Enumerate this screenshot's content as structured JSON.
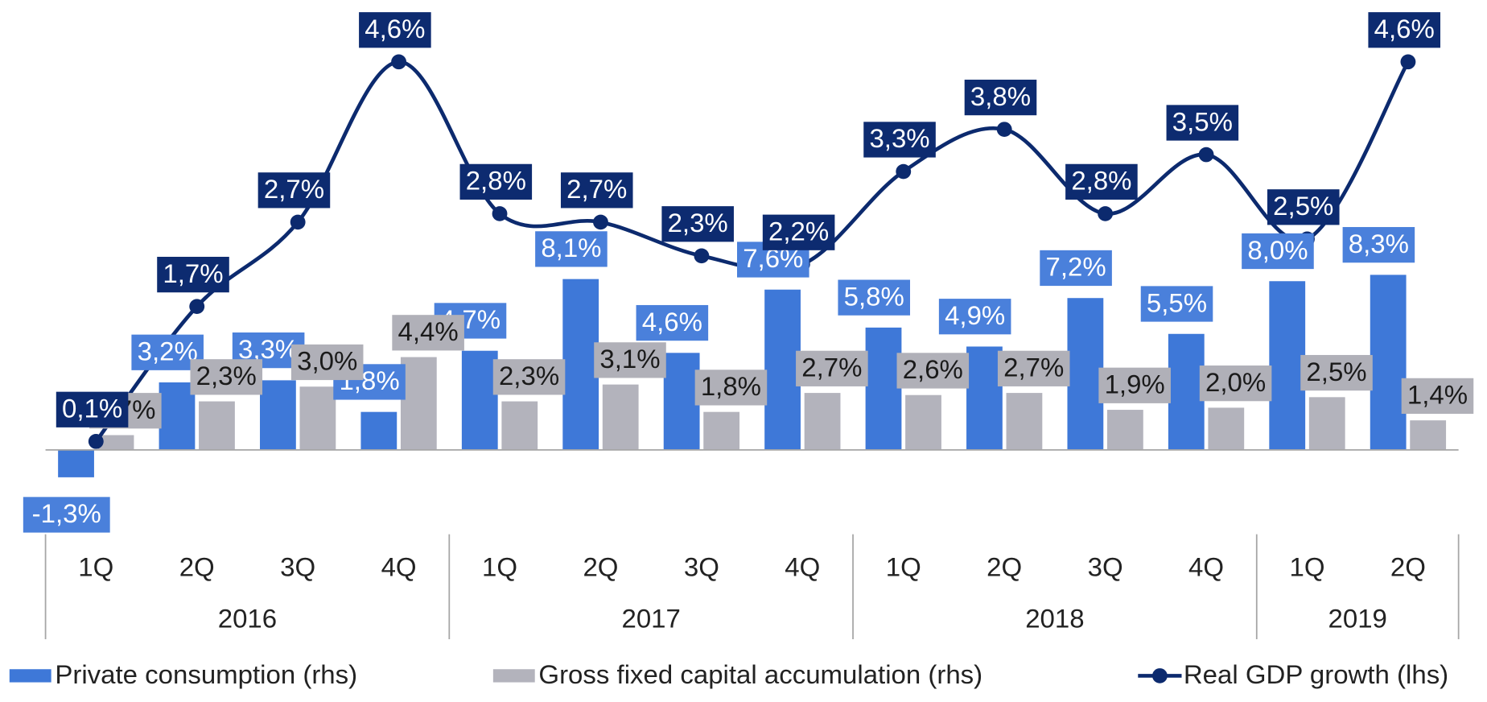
{
  "chart_data": {
    "type": "bar_line",
    "categories": [
      "1Q",
      "2Q",
      "3Q",
      "4Q",
      "1Q",
      "2Q",
      "3Q",
      "4Q",
      "1Q",
      "2Q",
      "3Q",
      "4Q",
      "1Q",
      "2Q"
    ],
    "groups": [
      {
        "label": "2016",
        "size": 4
      },
      {
        "label": "2017",
        "size": 4
      },
      {
        "label": "2018",
        "size": 4
      },
      {
        "label": "2019",
        "size": 2
      }
    ],
    "ylim": [
      -1,
      5
    ],
    "y2lim": [
      -4,
      20
    ],
    "series": [
      {
        "name": "Private consumption (rhs)",
        "color": "#3e78d8",
        "label_color": "#4a80db",
        "axis": "y2",
        "kind": "bar",
        "values": [
          -1.3,
          3.2,
          3.3,
          1.8,
          4.7,
          8.1,
          4.6,
          7.6,
          5.8,
          4.9,
          7.2,
          5.5,
          8.0,
          8.3
        ],
        "value_labels": [
          "-1,3%",
          "3,2%",
          "3,3%",
          "1,8%",
          "4,7%",
          "8,1%",
          "4,6%",
          "7,6%",
          "5,8%",
          "4,9%",
          "7,2%",
          "5,5%",
          "8,0%",
          "8,3%"
        ]
      },
      {
        "name": "Gross fixed capital accumulation (rhs)",
        "color": "#b3b3bc",
        "label_color": "#b0b0b8",
        "axis": "y2",
        "kind": "bar",
        "values": [
          0.7,
          2.3,
          3.0,
          4.4,
          2.3,
          3.1,
          1.8,
          2.7,
          2.6,
          2.7,
          1.9,
          2.0,
          2.5,
          1.4
        ],
        "value_labels": [
          "0,7%",
          "2,3%",
          "3,0%",
          "4,4%",
          "2,3%",
          "3,1%",
          "1,8%",
          "2,7%",
          "2,6%",
          "2,7%",
          "1,9%",
          "2,0%",
          "2,5%",
          "1,4%"
        ]
      },
      {
        "name": "Real GDP growth (lhs)",
        "color": "#0c2a6e",
        "label_color": "#0d2b70",
        "kind": "line",
        "values": [
          0.1,
          1.7,
          2.7,
          4.6,
          2.8,
          2.7,
          2.3,
          2.2,
          3.3,
          3.8,
          2.8,
          3.5,
          2.5,
          4.6
        ],
        "value_labels": [
          "0,1%",
          "1,7%",
          "2,7%",
          "4,6%",
          "2,8%",
          "2,7%",
          "2,3%",
          "2,2%",
          "3,3%",
          "3,8%",
          "2,8%",
          "3,5%",
          "2,5%",
          "4,6%"
        ]
      }
    ]
  }
}
